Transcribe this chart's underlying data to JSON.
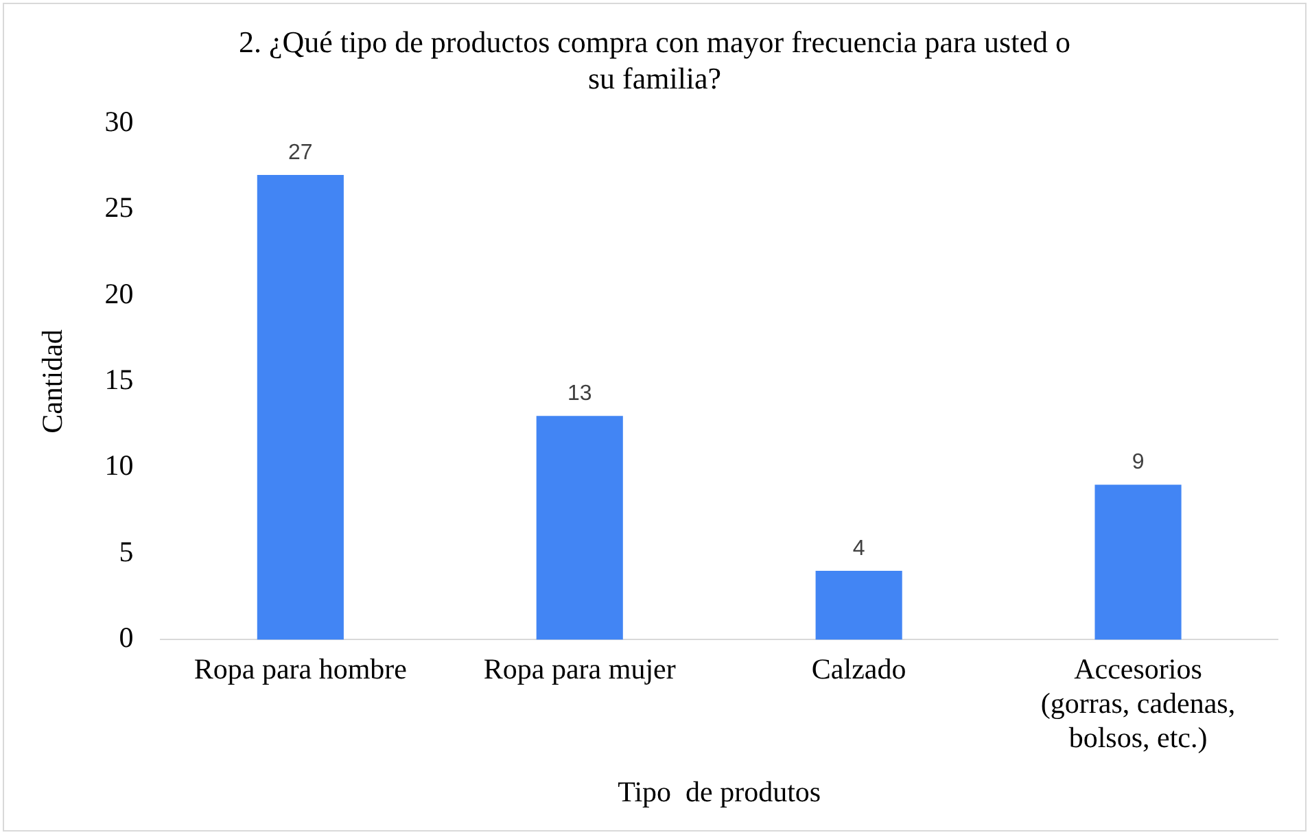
{
  "chart_data": {
    "type": "bar",
    "title": "2. ¿Qué tipo de productos compra con mayor frecuencia para usted o su familia?",
    "xlabel": "Tipo  de produtos",
    "ylabel": "Cantidad",
    "categories": [
      "Ropa para hombre",
      "Ropa para mujer",
      "Calzado",
      "Accesorios (gorras, cadenas, bolsos, etc.)"
    ],
    "values": [
      27,
      13,
      4,
      9
    ],
    "color": "#4285f4",
    "ylim": [
      0,
      30
    ],
    "yticks": [
      0,
      5,
      10,
      15,
      20,
      25,
      30
    ],
    "grid": false,
    "legend": false,
    "data_labels": true
  }
}
